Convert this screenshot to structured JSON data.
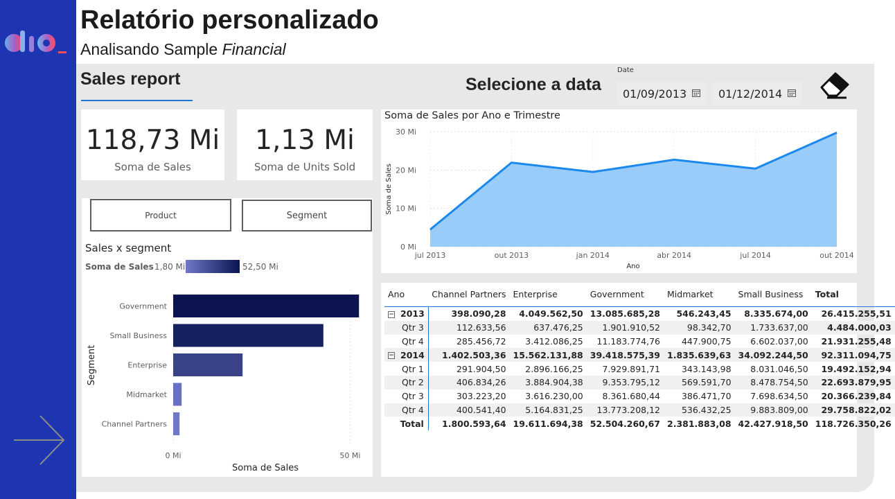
{
  "header": {
    "title": "Relatório personalizado",
    "subtitle_prefix": "Analisando Sample ",
    "subtitle_italic": "Financial"
  },
  "page": {
    "sales_report_label": "Sales report",
    "select_date_label": "Selecione a data"
  },
  "date_filter": {
    "label": "Date",
    "start": "01/09/2013",
    "end": "01/12/2014"
  },
  "kpis": [
    {
      "value": "118,73 Mi",
      "label": "Soma de  Sales"
    },
    {
      "value": "1,13 Mi",
      "label": "Soma de Units Sold"
    }
  ],
  "slicers": {
    "product_label": "Product",
    "segment_label": "Segment"
  },
  "colors": {
    "sidebar": "#1d35b1",
    "area_fill": "#99ccf9",
    "area_line": "#1a88ec",
    "bar_dark": "#0b1450",
    "bar_light": "#6f78c8",
    "accent_underline": "#1d75d8"
  },
  "icons": [
    "dio-logo",
    "calendar-icon",
    "eraser-icon",
    "arrow-right-icon",
    "expand-collapse-icon"
  ],
  "chart_data": [
    {
      "type": "area",
      "title": "Soma de Sales por Ano e Trimestre",
      "xlabel": "Ano",
      "ylabel": "Soma de Sales",
      "x": [
        "jul 2013",
        "out 2013",
        "jan 2014",
        "abr 2014",
        "jul 2014",
        "out 2014"
      ],
      "y_ticks": [
        "0 Mi",
        "10 Mi",
        "20 Mi",
        "30 Mi"
      ],
      "ylim": [
        0,
        30
      ],
      "series": [
        {
          "values": [
            4.484,
            21.931,
            19.492,
            22.694,
            20.366,
            29.759
          ]
        }
      ],
      "grid": true
    },
    {
      "type": "bar",
      "orientation": "horizontal",
      "title": "Sales x segment",
      "legend_title": "Soma de  Sales",
      "legend_min": "1,80 Mi",
      "legend_max": "52,50 Mi",
      "xlabel": "Soma de Sales",
      "ylabel": "Segment",
      "x_ticks": [
        "0 Mi",
        "50 Mi"
      ],
      "xlim": [
        0,
        55
      ],
      "categories": [
        "Government",
        "Small Business",
        "Enterprise",
        "Midmarket",
        "Channel Partners"
      ],
      "values": [
        52.5,
        42.43,
        19.61,
        2.38,
        1.8
      ]
    }
  ],
  "matrix": {
    "headers": [
      "Ano",
      "Channel Partners",
      "Enterprise",
      "Government",
      "Midmarket",
      "Small Business",
      "Total"
    ],
    "rows": [
      {
        "label": "2013",
        "level": 0,
        "values": [
          "398.090,28",
          "4.049.562,50",
          "13.085.685,28",
          "546.243,45",
          "8.335.674,00",
          "26.415.255,51"
        ]
      },
      {
        "label": "Qtr 3",
        "level": 1,
        "values": [
          "112.633,56",
          "637.476,25",
          "1.901.910,52",
          "98.342,70",
          "1.733.637,00",
          "4.484.000,03"
        ]
      },
      {
        "label": "Qtr 4",
        "level": 1,
        "values": [
          "285.456,72",
          "3.412.086,25",
          "11.183.774,76",
          "447.900,75",
          "6.602.037,00",
          "21.931.255,48"
        ]
      },
      {
        "label": "2014",
        "level": 0,
        "values": [
          "1.402.503,36",
          "15.562.131,88",
          "39.418.575,39",
          "1.835.639,63",
          "34.092.244,50",
          "92.311.094,75"
        ]
      },
      {
        "label": "Qtr 1",
        "level": 1,
        "values": [
          "291.904,50",
          "2.896.166,25",
          "7.929.891,71",
          "343.143,98",
          "8.031.046,50",
          "19.492.152,94"
        ]
      },
      {
        "label": "Qtr 2",
        "level": 1,
        "values": [
          "406.834,26",
          "3.884.904,38",
          "9.353.795,12",
          "569.591,70",
          "8.478.754,50",
          "22.693.879,95"
        ]
      },
      {
        "label": "Qtr 3",
        "level": 1,
        "values": [
          "303.223,20",
          "3.616.230,00",
          "8.361.680,44",
          "386.471,70",
          "7.698.634,50",
          "20.366.239,84"
        ]
      },
      {
        "label": "Qtr 4",
        "level": 1,
        "values": [
          "400.541,40",
          "5.164.831,25",
          "13.773.208,12",
          "536.432,25",
          "9.883.809,00",
          "29.758.822,02"
        ]
      },
      {
        "label": "Total",
        "level": 2,
        "values": [
          "1.800.593,64",
          "19.611.694,38",
          "52.504.260,67",
          "2.381.883,08",
          "42.427.918,50",
          "118.726.350,26"
        ]
      }
    ]
  }
}
